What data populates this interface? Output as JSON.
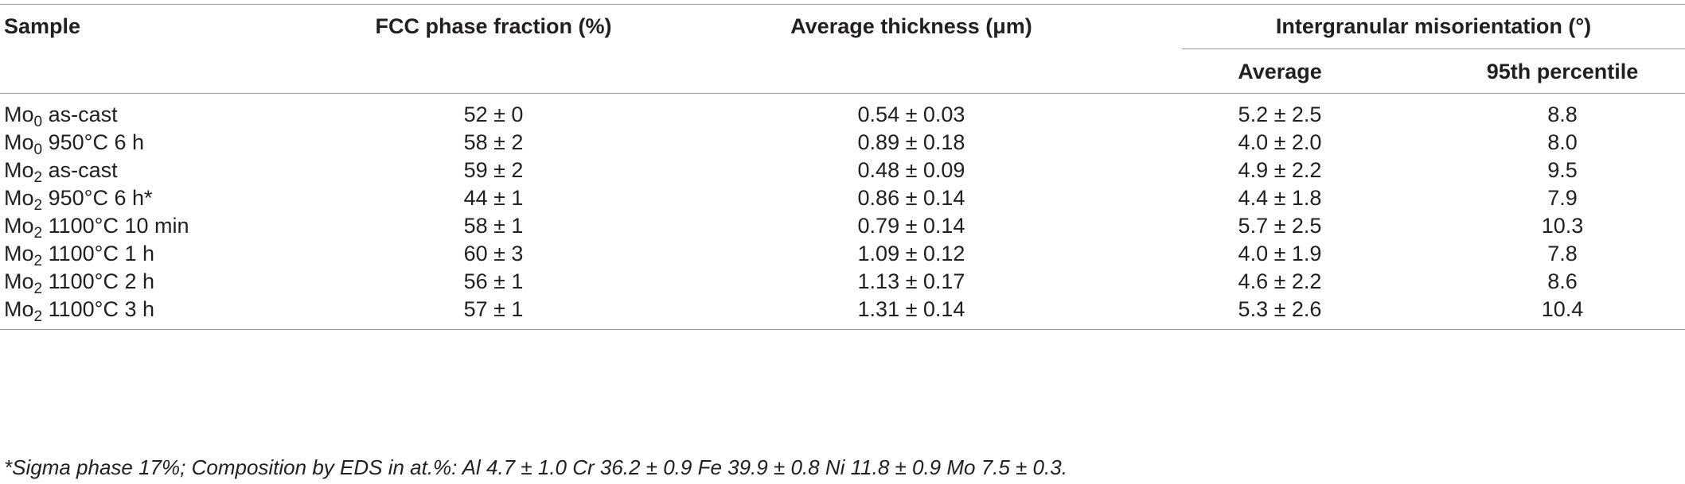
{
  "table": {
    "headers": {
      "sample": "Sample",
      "fcc_phase_fraction": "FCC phase fraction (%)",
      "average_thickness": "Average thickness (μm)",
      "intergranular_misorientation": "Intergranular misorientation (°)",
      "average": "Average",
      "percentile_95": "95th percentile"
    },
    "rows": [
      {
        "sample_base": "Mo",
        "sample_sub": "0",
        "sample_rest": " as-cast",
        "fcc": "52 ± 0",
        "thickness": "0.54 ± 0.03",
        "avg": "5.2 ± 2.5",
        "p95": "8.8"
      },
      {
        "sample_base": "Mo",
        "sample_sub": "0",
        "sample_rest": " 950°C 6 h",
        "fcc": "58 ± 2",
        "thickness": "0.89 ± 0.18",
        "avg": "4.0 ± 2.0",
        "p95": "8.0"
      },
      {
        "sample_base": "Mo",
        "sample_sub": "2",
        "sample_rest": " as-cast",
        "fcc": "59 ± 2",
        "thickness": "0.48 ± 0.09",
        "avg": "4.9 ± 2.2",
        "p95": "9.5"
      },
      {
        "sample_base": "Mo",
        "sample_sub": "2",
        "sample_rest": " 950°C 6 h*",
        "fcc": "44 ± 1",
        "thickness": "0.86 ± 0.14",
        "avg": "4.4 ± 1.8",
        "p95": "7.9"
      },
      {
        "sample_base": "Mo",
        "sample_sub": "2",
        "sample_rest": " 1100°C 10 min",
        "fcc": "58 ± 1",
        "thickness": "0.79 ± 0.14",
        "avg": "5.7 ± 2.5",
        "p95": "10.3"
      },
      {
        "sample_base": "Mo",
        "sample_sub": "2",
        "sample_rest": " 1100°C 1 h",
        "fcc": "60 ± 3",
        "thickness": "1.09 ± 0.12",
        "avg": "4.0 ± 1.9",
        "p95": "7.8"
      },
      {
        "sample_base": "Mo",
        "sample_sub": "2",
        "sample_rest": " 1100°C 2 h",
        "fcc": "56 ± 1",
        "thickness": "1.13 ± 0.17",
        "avg": "4.6 ± 2.2",
        "p95": "8.6"
      },
      {
        "sample_base": "Mo",
        "sample_sub": "2",
        "sample_rest": " 1100°C 3 h",
        "fcc": "57 ± 1",
        "thickness": "1.31 ± 0.14",
        "avg": "5.3 ± 2.6",
        "p95": "10.4"
      }
    ],
    "footnote": "*Sigma phase 17%; Composition by EDS in at.%: Al 4.7 ± 1.0 Cr 36.2 ± 0.9 Fe 39.9 ± 0.8 Ni 11.8 ± 0.9 Mo 7.5 ± 0.3."
  }
}
